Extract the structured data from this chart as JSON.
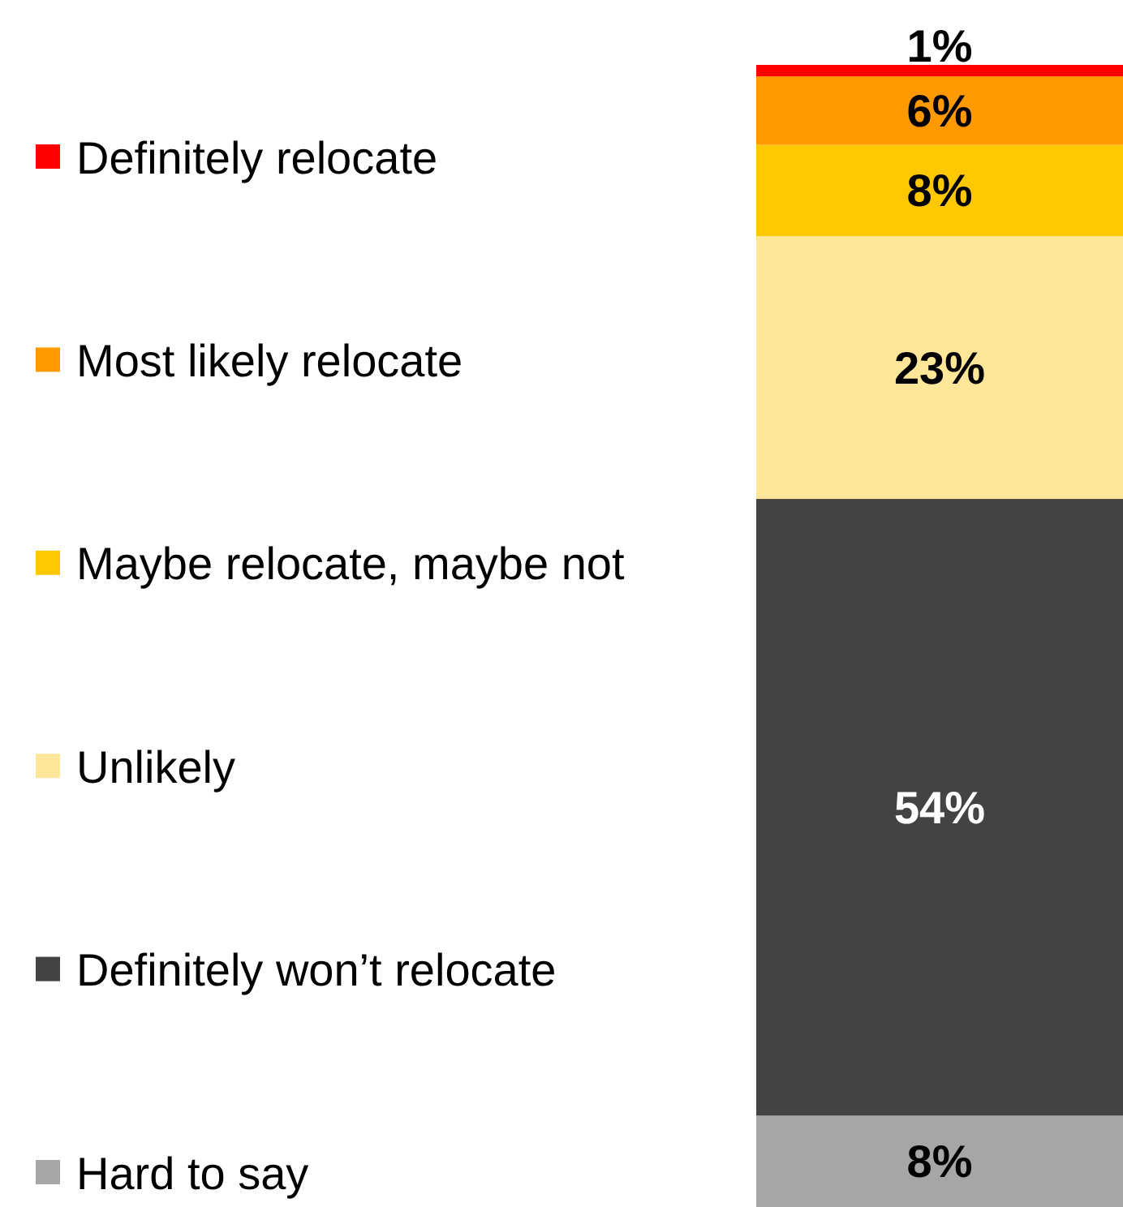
{
  "chart_data": {
    "type": "bar",
    "stacked": true,
    "categories": [
      null
    ],
    "legend": "left",
    "series": [
      {
        "name": "Hard to say",
        "color": "#a6a6a6",
        "values": [
          8
        ],
        "value_labels": [
          "8%"
        ]
      },
      {
        "name": "Definitely won’t relocate",
        "color": "#434343",
        "values": [
          54
        ],
        "value_labels": [
          "54%"
        ]
      },
      {
        "name": "Unlikely",
        "color": "#ffe699",
        "values": [
          23
        ],
        "value_labels": [
          "23%"
        ]
      },
      {
        "name": "Maybe relocate, maybe not",
        "color": "#ffc800",
        "values": [
          8
        ],
        "value_labels": [
          "8%"
        ]
      },
      {
        "name": "Most likely relocate",
        "color": "#ff9900",
        "values": [
          6
        ],
        "value_labels": [
          "6%"
        ]
      },
      {
        "name": "Definitely relocate",
        "color": "#ff0000",
        "values": [
          1
        ],
        "value_labels": [
          "1%"
        ]
      }
    ]
  }
}
